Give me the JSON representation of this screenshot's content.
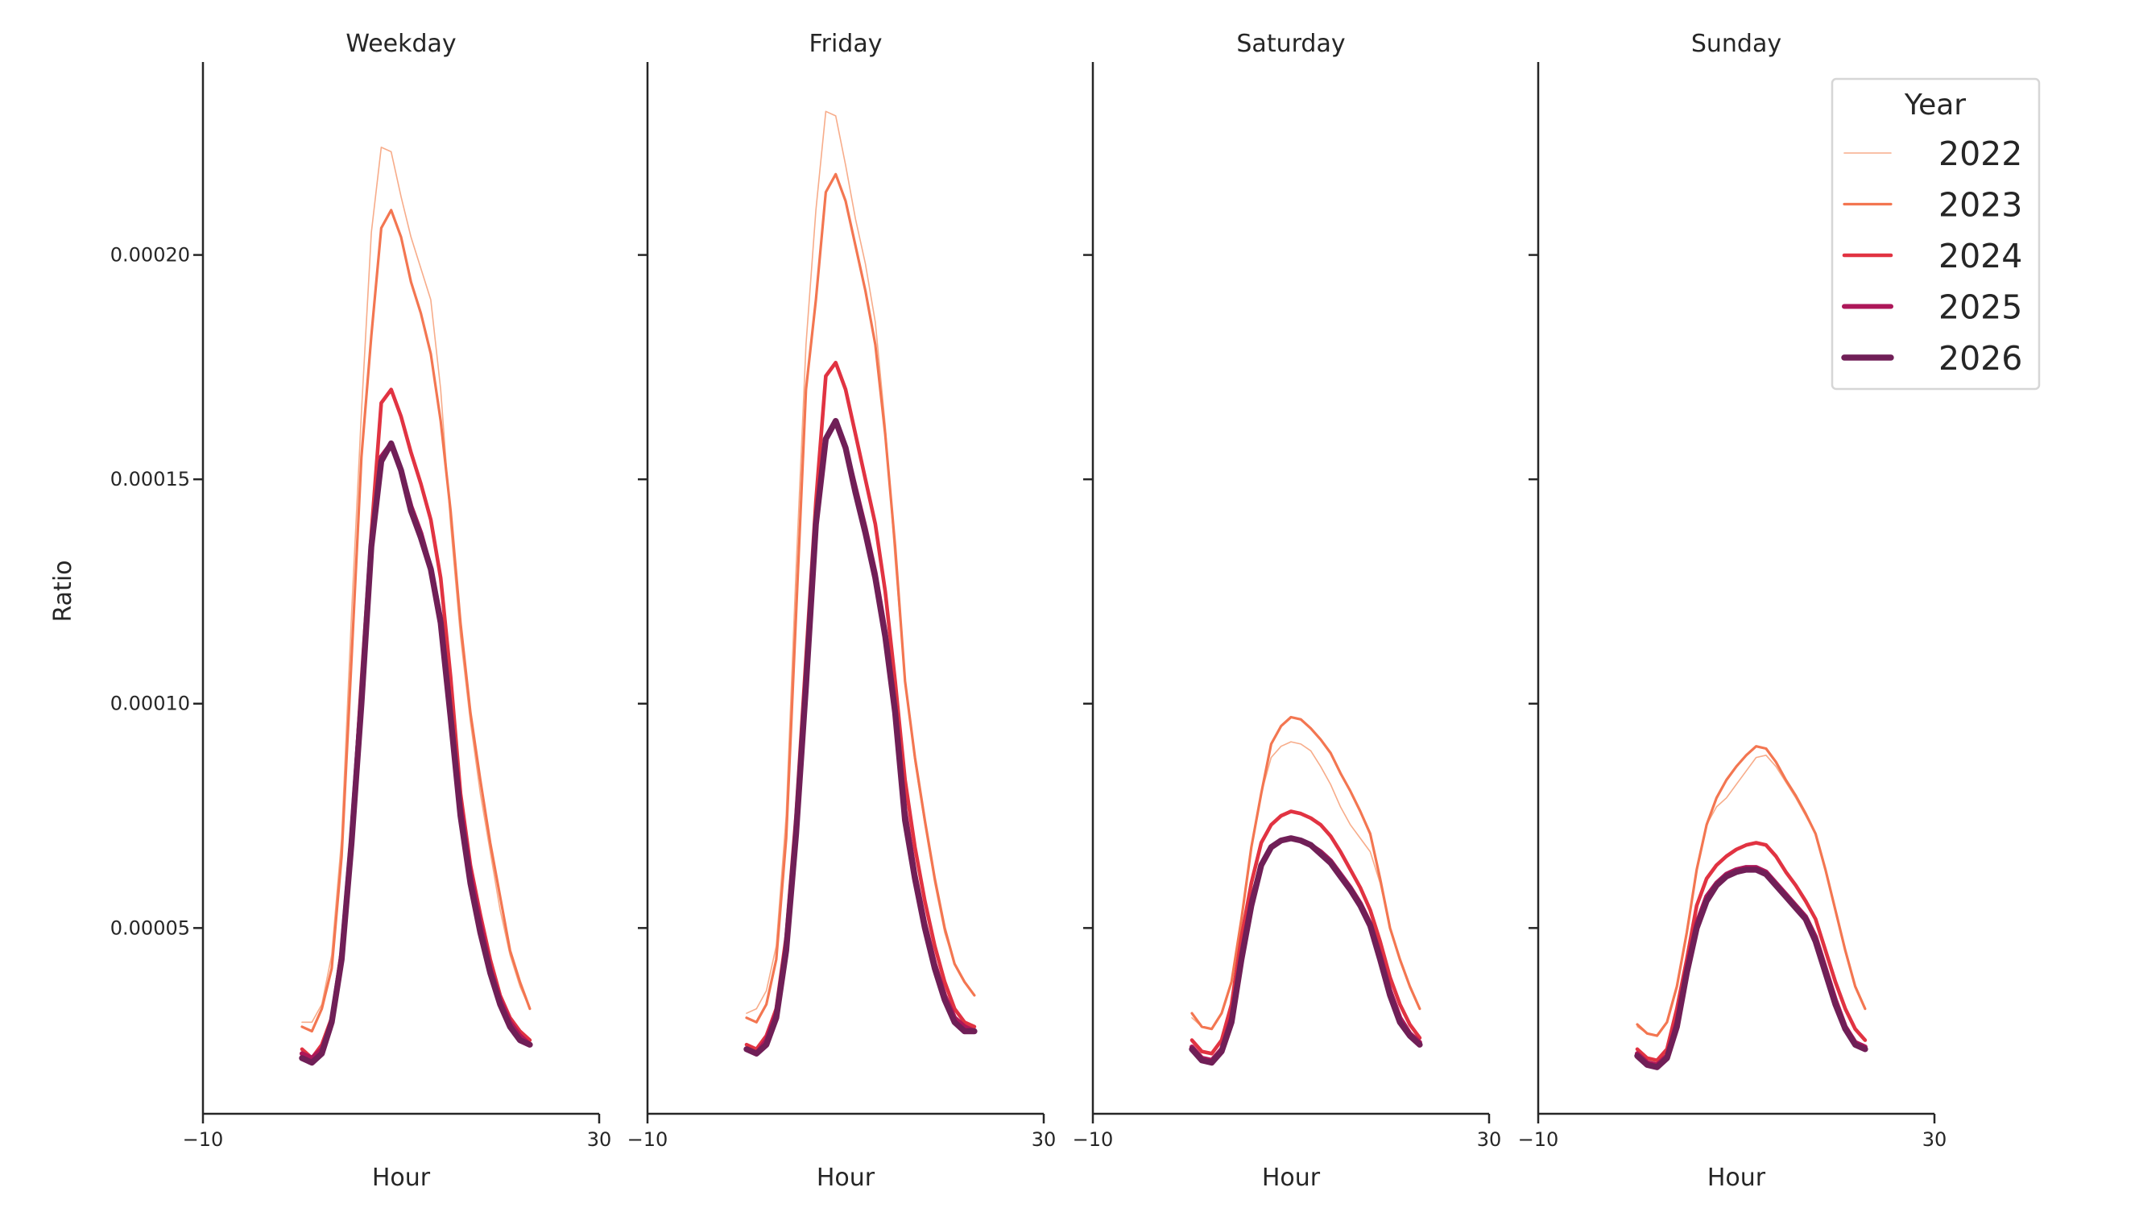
{
  "chart_data": {
    "type": "line",
    "facet_by": "day type",
    "ylabel": "Ratio",
    "xlabel": "Hour",
    "xlim": [
      -10,
      30
    ],
    "ylim": [
      8.6e-06,
      0.000243
    ],
    "x_ticks": [
      -10,
      30
    ],
    "x_tick_labels": [
      "−10",
      "30"
    ],
    "y_ticks": [
      5e-05,
      0.0001,
      0.00015,
      0.0002
    ],
    "y_tick_labels": [
      "0.00005",
      "0.00010",
      "0.00015",
      "0.00020"
    ],
    "grid": false,
    "x": [
      0,
      1,
      2,
      3,
      4,
      5,
      6,
      7,
      8,
      9,
      10,
      11,
      12,
      13,
      14,
      15,
      16,
      17,
      18,
      19,
      20,
      21,
      22,
      23
    ],
    "value_scale": 1e-05,
    "legend": {
      "title": "Year",
      "placement": "top-right",
      "entries": [
        "2022",
        "2023",
        "2024",
        "2025",
        "2026"
      ]
    },
    "series_colors": {
      "2022": "#f7ac8a",
      "2023": "#f37651",
      "2024": "#e13342",
      "2025": "#ad1759",
      "2026": "#701f57"
    },
    "panels": [
      {
        "title": "Weekday",
        "series": [
          {
            "name": "2022",
            "values": [
              2.9,
              2.9,
              3.3,
              4.4,
              7.0,
              12,
              16.5,
              20.5,
              22.4,
              22.3,
              21.3,
              20.4,
              19.7,
              19.0,
              17.0,
              14.0,
              11.5,
              9.6,
              8.0,
              6.7,
              5.4,
              4.4,
              3.7,
              3.2
            ]
          },
          {
            "name": "2023",
            "values": [
              2.8,
              2.7,
              3.2,
              4.1,
              6.6,
              11,
              15.5,
              18.2,
              20.6,
              21.0,
              20.4,
              19.4,
              18.7,
              17.8,
              16.3,
              14.3,
              11.8,
              9.8,
              8.3,
              6.9,
              5.7,
              4.5,
              3.8,
              3.2
            ]
          },
          {
            "name": "2024",
            "values": [
              2.3,
              2.1,
              2.4,
              3.0,
              4.5,
              7.0,
              10.5,
              13.8,
              16.7,
              17.0,
              16.4,
              15.6,
              14.9,
              14.1,
              12.8,
              10.6,
              8.0,
              6.4,
              5.3,
              4.3,
              3.5,
              3.0,
              2.7,
              2.5
            ]
          },
          {
            "name": "2025",
            "values": [
              2.2,
              2.1,
              2.3,
              2.9,
              4.4,
              7.0,
              10.2,
              13.5,
              15.5,
              15.8,
              15.2,
              14.4,
              13.8,
              13.0,
              11.9,
              9.8,
              7.7,
              6.2,
              5.1,
              4.1,
              3.4,
              2.9,
              2.6,
              2.4
            ]
          },
          {
            "name": "2026",
            "values": [
              2.1,
              2.0,
              2.2,
              2.9,
              4.3,
              6.9,
              10.0,
              13.5,
              15.4,
              15.8,
              15.2,
              14.3,
              13.7,
              13.0,
              11.8,
              9.7,
              7.5,
              6.0,
              4.9,
              4.0,
              3.3,
              2.8,
              2.5,
              2.4
            ]
          }
        ]
      },
      {
        "title": "Friday",
        "series": [
          {
            "name": "2022",
            "values": [
              3.1,
              3.2,
              3.6,
              4.6,
              7.5,
              13,
              18,
              21.0,
              23.2,
              23.1,
              22.0,
              20.8,
              19.8,
              18.5,
              16.2,
              13.2,
              10.5,
              8.7,
              7.3,
              6.0,
              4.9,
              4.2,
              3.8,
              3.5
            ]
          },
          {
            "name": "2023",
            "values": [
              3.0,
              2.9,
              3.3,
              4.3,
              7.0,
              12,
              17,
              19.0,
              21.4,
              21.8,
              21.2,
              20.2,
              19.2,
              18.0,
              16.0,
              13.5,
              10.5,
              8.8,
              7.4,
              6.1,
              5.0,
              4.2,
              3.8,
              3.5
            ]
          },
          {
            "name": "2024",
            "values": [
              2.4,
              2.3,
              2.6,
              3.2,
              4.8,
              7.5,
              11,
              14.5,
              17.3,
              17.6,
              17.0,
              16.0,
              15.0,
              14.0,
              12.5,
              10.5,
              8.3,
              6.8,
              5.6,
              4.6,
              3.8,
              3.2,
              2.9,
              2.8
            ]
          },
          {
            "name": "2025",
            "values": [
              2.3,
              2.2,
              2.5,
              3.1,
              4.6,
              7.2,
              10.5,
              14,
              15.9,
              16.3,
              15.7,
              14.8,
              13.9,
              12.9,
              11.6,
              9.9,
              7.6,
              6.2,
              5.1,
              4.2,
              3.5,
              3.0,
              2.8,
              2.7
            ]
          },
          {
            "name": "2026",
            "values": [
              2.3,
              2.2,
              2.4,
              3.0,
              4.5,
              7.1,
              10.4,
              14,
              15.9,
              16.3,
              15.7,
              14.7,
              13.8,
              12.8,
              11.5,
              9.8,
              7.4,
              6.1,
              5.0,
              4.1,
              3.4,
              2.9,
              2.7,
              2.7
            ]
          }
        ]
      },
      {
        "title": "Saturday",
        "series": [
          {
            "name": "2022",
            "values": [
              3.0,
              2.8,
              2.75,
              3.1,
              3.8,
              5.2,
              6.8,
              8.0,
              8.8,
              9.05,
              9.15,
              9.1,
              8.95,
              8.6,
              8.2,
              7.7,
              7.3,
              7.0,
              6.7,
              6.0,
              5.0,
              4.3,
              3.7,
              3.2
            ]
          },
          {
            "name": "2023",
            "values": [
              3.1,
              2.8,
              2.75,
              3.1,
              3.8,
              5.2,
              6.8,
              8.0,
              9.1,
              9.5,
              9.7,
              9.65,
              9.45,
              9.2,
              8.9,
              8.45,
              8.05,
              7.6,
              7.1,
              6.1,
              5.0,
              4.3,
              3.7,
              3.2
            ]
          },
          {
            "name": "2024",
            "values": [
              2.5,
              2.25,
              2.2,
              2.5,
              3.3,
              4.8,
              6.0,
              6.9,
              7.3,
              7.5,
              7.6,
              7.55,
              7.45,
              7.3,
              7.05,
              6.7,
              6.3,
              5.9,
              5.4,
              4.7,
              3.9,
              3.3,
              2.85,
              2.55
            ]
          },
          {
            "name": "2025",
            "values": [
              2.35,
              2.1,
              2.05,
              2.3,
              3.0,
              4.4,
              5.6,
              6.4,
              6.8,
              6.95,
              7.0,
              6.95,
              6.85,
              6.7,
              6.5,
              6.2,
              5.9,
              5.55,
              5.1,
              4.4,
              3.6,
              3.0,
              2.65,
              2.45
            ]
          },
          {
            "name": "2026",
            "values": [
              2.3,
              2.05,
              2.0,
              2.25,
              2.9,
              4.3,
              5.5,
              6.4,
              6.8,
              6.95,
              7.0,
              6.95,
              6.85,
              6.65,
              6.45,
              6.15,
              5.85,
              5.5,
              5.05,
              4.3,
              3.5,
              2.9,
              2.6,
              2.4
            ]
          }
        ]
      },
      {
        "title": "Sunday",
        "series": [
          {
            "name": "2022",
            "values": [
              2.8,
              2.65,
              2.6,
              2.9,
              3.7,
              4.9,
              6.3,
              7.3,
              7.7,
              7.9,
              8.2,
              8.5,
              8.8,
              8.85,
              8.6,
              8.25,
              7.9,
              7.5,
              7.1,
              6.3,
              5.4,
              4.5,
              3.7,
              3.2
            ]
          },
          {
            "name": "2023",
            "values": [
              2.85,
              2.65,
              2.6,
              2.9,
              3.7,
              4.9,
              6.3,
              7.3,
              7.9,
              8.3,
              8.6,
              8.85,
              9.05,
              9.0,
              8.7,
              8.3,
              7.95,
              7.55,
              7.1,
              6.3,
              5.4,
              4.5,
              3.7,
              3.2
            ]
          },
          {
            "name": "2024",
            "values": [
              2.3,
              2.1,
              2.05,
              2.3,
              3.2,
              4.3,
              5.5,
              6.1,
              6.4,
              6.6,
              6.75,
              6.85,
              6.9,
              6.85,
              6.6,
              6.25,
              5.95,
              5.6,
              5.2,
              4.5,
              3.8,
              3.2,
              2.75,
              2.5
            ]
          },
          {
            "name": "2025",
            "values": [
              2.2,
              2.0,
              1.95,
              2.15,
              2.9,
              4.1,
              5.1,
              5.7,
              6.0,
              6.2,
              6.3,
              6.35,
              6.35,
              6.25,
              6.0,
              5.75,
              5.5,
              5.25,
              4.8,
              4.1,
              3.4,
              2.8,
              2.45,
              2.35
            ]
          },
          {
            "name": "2026",
            "values": [
              2.15,
              1.95,
              1.9,
              2.1,
              2.8,
              4.0,
              5.0,
              5.6,
              5.95,
              6.15,
              6.25,
              6.3,
              6.3,
              6.2,
              5.95,
              5.7,
              5.45,
              5.2,
              4.7,
              4.0,
              3.3,
              2.75,
              2.4,
              2.3
            ]
          }
        ]
      }
    ]
  }
}
